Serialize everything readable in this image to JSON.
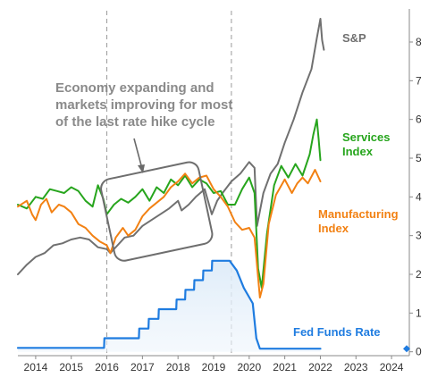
{
  "chart_data": {
    "type": "line",
    "x_axis": {
      "range": [
        2013.5,
        2024.5
      ],
      "tick_labels": [
        "2014",
        "2015",
        "2016",
        "2017",
        "2018",
        "2019",
        "2020",
        "2021",
        "2022",
        "2023",
        "2024"
      ]
    },
    "y_axis": {
      "position": "right",
      "range": [
        -0.1,
        8.9
      ],
      "tick_labels": [
        "0",
        "1",
        "2",
        "3",
        "4",
        "5",
        "6",
        "7",
        "8"
      ]
    },
    "grid": false,
    "vertical_reference_lines": [
      2016.0,
      2019.5
    ],
    "annotation": {
      "lines": [
        "Economy expanding and",
        "markets improving for most",
        "of the last rate hike cycle"
      ],
      "highlight_box": {
        "x_range": [
          2016.0,
          2018.8
        ],
        "y_range": [
          2.55,
          4.7
        ],
        "rotation_deg": -12
      }
    },
    "series": [
      {
        "name": "S&P",
        "label_lines": [
          "S&P"
        ],
        "color": "#707070",
        "points": [
          [
            2013.5,
            2.0
          ],
          [
            2013.75,
            2.25
          ],
          [
            2014.0,
            2.45
          ],
          [
            2014.25,
            2.55
          ],
          [
            2014.5,
            2.75
          ],
          [
            2014.75,
            2.8
          ],
          [
            2015.0,
            2.9
          ],
          [
            2015.25,
            2.95
          ],
          [
            2015.5,
            2.9
          ],
          [
            2015.75,
            2.7
          ],
          [
            2016.0,
            2.65
          ],
          [
            2016.1,
            2.55
          ],
          [
            2016.3,
            2.75
          ],
          [
            2016.5,
            2.95
          ],
          [
            2016.75,
            3.0
          ],
          [
            2017.0,
            3.25
          ],
          [
            2017.25,
            3.4
          ],
          [
            2017.5,
            3.55
          ],
          [
            2017.75,
            3.7
          ],
          [
            2018.0,
            3.9
          ],
          [
            2018.1,
            3.65
          ],
          [
            2018.3,
            3.8
          ],
          [
            2018.5,
            4.0
          ],
          [
            2018.75,
            4.2
          ],
          [
            2018.95,
            3.55
          ],
          [
            2019.1,
            3.9
          ],
          [
            2019.25,
            4.1
          ],
          [
            2019.5,
            4.4
          ],
          [
            2019.75,
            4.6
          ],
          [
            2020.0,
            4.9
          ],
          [
            2020.15,
            4.75
          ],
          [
            2020.22,
            3.25
          ],
          [
            2020.4,
            4.1
          ],
          [
            2020.6,
            4.6
          ],
          [
            2020.8,
            4.85
          ],
          [
            2021.0,
            5.4
          ],
          [
            2021.25,
            6.0
          ],
          [
            2021.5,
            6.7
          ],
          [
            2021.75,
            7.3
          ],
          [
            2021.9,
            8.1
          ],
          [
            2022.0,
            8.6
          ],
          [
            2022.05,
            8.05
          ],
          [
            2022.1,
            7.8
          ]
        ]
      },
      {
        "name": "Services Index",
        "label_lines": [
          "Services",
          "Index"
        ],
        "color": "#27a51d",
        "points": [
          [
            2013.5,
            3.8
          ],
          [
            2013.75,
            3.7
          ],
          [
            2014.0,
            4.0
          ],
          [
            2014.2,
            3.95
          ],
          [
            2014.4,
            4.2
          ],
          [
            2014.6,
            4.15
          ],
          [
            2014.8,
            4.1
          ],
          [
            2015.0,
            4.25
          ],
          [
            2015.2,
            4.15
          ],
          [
            2015.4,
            3.9
          ],
          [
            2015.6,
            3.75
          ],
          [
            2015.75,
            4.3
          ],
          [
            2015.9,
            3.95
          ],
          [
            2016.0,
            3.55
          ],
          [
            2016.2,
            3.8
          ],
          [
            2016.4,
            3.95
          ],
          [
            2016.6,
            3.85
          ],
          [
            2016.8,
            4.0
          ],
          [
            2017.0,
            4.2
          ],
          [
            2017.2,
            3.9
          ],
          [
            2017.4,
            4.25
          ],
          [
            2017.6,
            4.1
          ],
          [
            2017.8,
            4.45
          ],
          [
            2018.0,
            4.3
          ],
          [
            2018.2,
            4.55
          ],
          [
            2018.4,
            4.25
          ],
          [
            2018.6,
            4.45
          ],
          [
            2018.8,
            4.35
          ],
          [
            2019.0,
            4.1
          ],
          [
            2019.2,
            4.15
          ],
          [
            2019.4,
            3.8
          ],
          [
            2019.6,
            3.8
          ],
          [
            2019.8,
            4.2
          ],
          [
            2020.0,
            4.5
          ],
          [
            2020.15,
            4.1
          ],
          [
            2020.25,
            2.15
          ],
          [
            2020.35,
            1.65
          ],
          [
            2020.5,
            3.05
          ],
          [
            2020.7,
            4.3
          ],
          [
            2020.9,
            4.8
          ],
          [
            2021.1,
            4.5
          ],
          [
            2021.3,
            4.85
          ],
          [
            2021.5,
            4.55
          ],
          [
            2021.7,
            5.1
          ],
          [
            2021.8,
            5.6
          ],
          [
            2021.9,
            6.0
          ],
          [
            2021.95,
            5.5
          ],
          [
            2022.0,
            4.95
          ]
        ]
      },
      {
        "name": "Manufacturing Index",
        "label_lines": [
          "Manufacturing",
          "Index"
        ],
        "color": "#f28113",
        "points": [
          [
            2013.5,
            3.75
          ],
          [
            2013.75,
            3.9
          ],
          [
            2013.9,
            3.55
          ],
          [
            2014.0,
            3.4
          ],
          [
            2014.15,
            3.8
          ],
          [
            2014.3,
            3.95
          ],
          [
            2014.45,
            3.6
          ],
          [
            2014.65,
            3.8
          ],
          [
            2014.8,
            3.75
          ],
          [
            2015.0,
            3.6
          ],
          [
            2015.2,
            3.3
          ],
          [
            2015.4,
            3.2
          ],
          [
            2015.6,
            3.0
          ],
          [
            2015.8,
            2.85
          ],
          [
            2016.0,
            2.75
          ],
          [
            2016.1,
            2.55
          ],
          [
            2016.25,
            2.95
          ],
          [
            2016.45,
            3.2
          ],
          [
            2016.6,
            3.0
          ],
          [
            2016.8,
            3.15
          ],
          [
            2017.0,
            3.5
          ],
          [
            2017.2,
            3.7
          ],
          [
            2017.4,
            3.85
          ],
          [
            2017.6,
            4.0
          ],
          [
            2017.8,
            4.25
          ],
          [
            2018.0,
            4.4
          ],
          [
            2018.2,
            4.6
          ],
          [
            2018.4,
            4.35
          ],
          [
            2018.6,
            4.5
          ],
          [
            2018.8,
            4.55
          ],
          [
            2019.0,
            4.2
          ],
          [
            2019.2,
            4.0
          ],
          [
            2019.4,
            3.75
          ],
          [
            2019.6,
            3.35
          ],
          [
            2019.8,
            3.15
          ],
          [
            2020.0,
            3.2
          ],
          [
            2020.15,
            2.95
          ],
          [
            2020.3,
            1.4
          ],
          [
            2020.4,
            1.75
          ],
          [
            2020.55,
            3.3
          ],
          [
            2020.75,
            4.05
          ],
          [
            2021.0,
            4.45
          ],
          [
            2021.2,
            4.1
          ],
          [
            2021.35,
            4.35
          ],
          [
            2021.5,
            4.5
          ],
          [
            2021.65,
            4.35
          ],
          [
            2021.85,
            4.7
          ],
          [
            2022.0,
            4.4
          ]
        ]
      },
      {
        "name": "Fed Funds Rate",
        "label_lines": [
          "Fed Funds Rate"
        ],
        "color": "#1f7ce0",
        "points": [
          [
            2013.5,
            0.1
          ],
          [
            2015.92,
            0.1
          ],
          [
            2015.93,
            0.35
          ],
          [
            2016.9,
            0.35
          ],
          [
            2016.91,
            0.6
          ],
          [
            2017.17,
            0.6
          ],
          [
            2017.18,
            0.85
          ],
          [
            2017.45,
            0.85
          ],
          [
            2017.46,
            1.1
          ],
          [
            2017.95,
            1.1
          ],
          [
            2017.96,
            1.35
          ],
          [
            2018.2,
            1.35
          ],
          [
            2018.21,
            1.6
          ],
          [
            2018.45,
            1.6
          ],
          [
            2018.46,
            1.85
          ],
          [
            2018.7,
            1.85
          ],
          [
            2018.71,
            2.1
          ],
          [
            2018.95,
            2.1
          ],
          [
            2018.96,
            2.35
          ],
          [
            2019.45,
            2.35
          ],
          [
            2019.65,
            2.1
          ],
          [
            2019.85,
            1.65
          ],
          [
            2020.1,
            1.25
          ],
          [
            2020.2,
            0.35
          ],
          [
            2020.3,
            0.08
          ],
          [
            2022.0,
            0.08
          ]
        ]
      }
    ],
    "final_marker": {
      "x": 2024.5,
      "y": 0.08,
      "shape": "diamond",
      "color": "#1f7ce0"
    }
  }
}
